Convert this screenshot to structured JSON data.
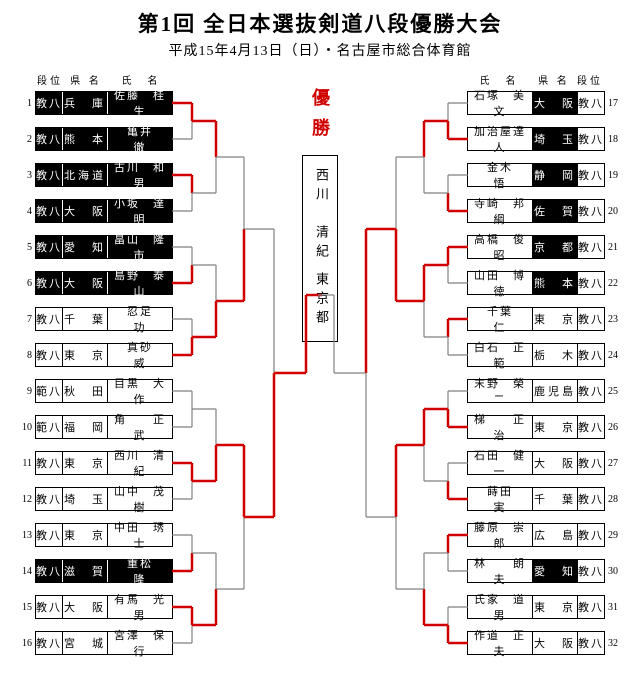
{
  "title": "第1回 全日本選抜剣道八段優勝大会",
  "subtitle": "平成15年4月13日（日）・名古屋市総合体育館",
  "headers": {
    "dan": "段位",
    "pref": "県 名",
    "name": "氏　名"
  },
  "yusho_label": "優勝",
  "winner": {
    "name": "西川　清紀",
    "pref": "東京都"
  },
  "colors": {
    "win": "#d00000",
    "lose": "#808080",
    "shade": "#000000"
  },
  "left": [
    {
      "n": 1,
      "dan": "教八",
      "pref": "兵　庫",
      "name": "佐藤　桂生",
      "shaded": true
    },
    {
      "n": 2,
      "dan": "教八",
      "pref": "熊　本",
      "name": "亀井　　徹",
      "shaded": true
    },
    {
      "n": 3,
      "dan": "教八",
      "pref": "北海道",
      "name": "古川　和男",
      "shaded": true
    },
    {
      "n": 4,
      "dan": "教八",
      "pref": "大　阪",
      "name": "小坂　達明",
      "shaded": true
    },
    {
      "n": 5,
      "dan": "教八",
      "pref": "愛　知",
      "name": "畠山　隆市",
      "shaded": true
    },
    {
      "n": 6,
      "dan": "教八",
      "pref": "大　阪",
      "name": "島野　泰山",
      "shaded": true
    },
    {
      "n": 7,
      "dan": "教八",
      "pref": "千　葉",
      "name": "忍足　　功"
    },
    {
      "n": 8,
      "dan": "教八",
      "pref": "東　京",
      "name": "真砂　　威"
    },
    {
      "n": 9,
      "dan": "範八",
      "pref": "秋　田",
      "name": "目黒　大作"
    },
    {
      "n": 10,
      "dan": "範八",
      "pref": "福　岡",
      "name": "角　　正武"
    },
    {
      "n": 11,
      "dan": "教八",
      "pref": "東　京",
      "name": "西川　清紀"
    },
    {
      "n": 12,
      "dan": "教八",
      "pref": "埼　玉",
      "name": "山中　茂樹"
    },
    {
      "n": 13,
      "dan": "教八",
      "pref": "東　京",
      "name": "中田　琇士"
    },
    {
      "n": 14,
      "dan": "教八",
      "pref": "滋　賀",
      "name": "重松　　隆",
      "shaded": true
    },
    {
      "n": 15,
      "dan": "教八",
      "pref": "大　阪",
      "name": "有馬　光男"
    },
    {
      "n": 16,
      "dan": "教八",
      "pref": "宮　城",
      "name": "宮澤　保行"
    }
  ],
  "right": [
    {
      "n": 17,
      "dan": "教八",
      "pref": "大　阪",
      "name": "石塚　美文",
      "pref_shaded": true
    },
    {
      "n": 18,
      "dan": "教八",
      "pref": "埼　玉",
      "name": "加治屋達人",
      "pref_shaded": true
    },
    {
      "n": 19,
      "dan": "教八",
      "pref": "静　岡",
      "name": "金木　　悟",
      "pref_shaded": true
    },
    {
      "n": 20,
      "dan": "教八",
      "pref": "佐　賀",
      "name": "寺崎　邦綱",
      "pref_shaded": true
    },
    {
      "n": 21,
      "dan": "教八",
      "pref": "京　都",
      "name": "高橋　俊昭",
      "pref_shaded": true
    },
    {
      "n": 22,
      "dan": "教八",
      "pref": "熊　本",
      "name": "山田　博徳",
      "pref_shaded": true
    },
    {
      "n": 23,
      "dan": "教八",
      "pref": "東　京",
      "name": "千葉　　仁"
    },
    {
      "n": 24,
      "dan": "教八",
      "pref": "栃　木",
      "name": "白石　正範"
    },
    {
      "n": 25,
      "dan": "教八",
      "pref": "鹿児島",
      "name": "末野　榮二"
    },
    {
      "n": 26,
      "dan": "教八",
      "pref": "東　京",
      "name": "梯　　正治"
    },
    {
      "n": 27,
      "dan": "教八",
      "pref": "大　阪",
      "name": "石田　健一"
    },
    {
      "n": 28,
      "dan": "教八",
      "pref": "千　葉",
      "name": "蒔田　　実"
    },
    {
      "n": 29,
      "dan": "教八",
      "pref": "広　島",
      "name": "藤原　崇郎"
    },
    {
      "n": 30,
      "dan": "教八",
      "pref": "愛　知",
      "name": "林　　朗夫",
      "pref_shaded": true
    },
    {
      "n": 31,
      "dan": "教八",
      "pref": "東　京",
      "name": "氏家　道男"
    },
    {
      "n": 32,
      "dan": "教八",
      "pref": "大　阪",
      "name": "作道　正夫"
    }
  ],
  "bracket_left": {
    "r1": [
      1,
      0,
      1,
      0,
      0,
      1,
      0,
      1,
      0,
      0,
      1,
      0,
      0,
      1,
      1,
      0
    ],
    "r2": [
      1,
      0,
      0,
      1,
      0,
      1,
      0,
      1
    ],
    "r3": [
      0,
      1,
      1,
      0
    ],
    "r4": [
      0,
      1
    ],
    "r5": [
      1
    ]
  },
  "bracket_right": {
    "r1": [
      0,
      1,
      0,
      1,
      1,
      0,
      1,
      0,
      0,
      1,
      0,
      1,
      1,
      0,
      0,
      1
    ],
    "r2": [
      1,
      0,
      1,
      0,
      1,
      0,
      0,
      1
    ],
    "r3": [
      0,
      1,
      1,
      0
    ],
    "r4": [
      1,
      0
    ],
    "r5": [
      0
    ]
  }
}
